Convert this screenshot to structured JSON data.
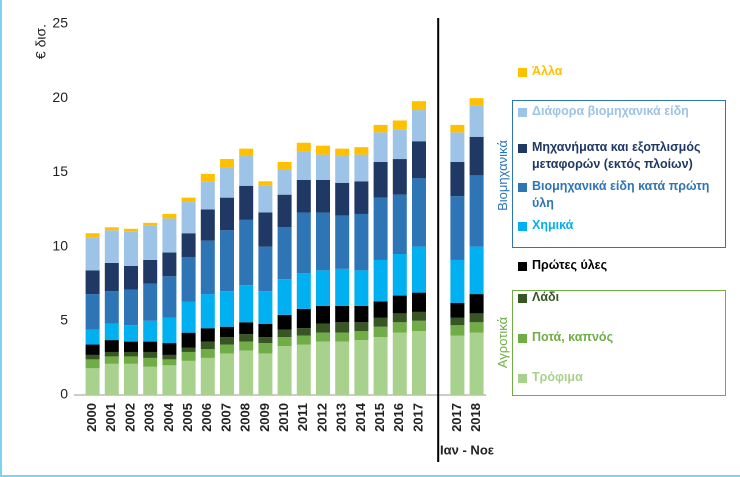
{
  "chart_data": {
    "type": "stacked_bar",
    "y_label": "€ δισ.",
    "period_label": "Ιαν - Νοε",
    "categories": [
      "2000",
      "2001",
      "2002",
      "2003",
      "2004",
      "2005",
      "2006",
      "2007",
      "2008",
      "2009",
      "2010",
      "2011",
      "2012",
      "2013",
      "2014",
      "2015",
      "2016",
      "2017",
      null,
      "2017",
      "2018"
    ],
    "ylim": [
      0,
      25
    ],
    "yticks": [
      0,
      5,
      10,
      15,
      20,
      25
    ],
    "grid": false,
    "groups": [
      {
        "label": "Βιομηχανικά",
        "color": "#2e75b6"
      },
      {
        "label": "Αγροτικά",
        "color": "#70ad47"
      }
    ],
    "series": [
      {
        "name": "Τρόφιμα",
        "color": "#a9d18e",
        "values": [
          1.8,
          2.1,
          2.1,
          1.9,
          2.0,
          2.3,
          2.5,
          2.8,
          3.0,
          2.8,
          3.3,
          3.4,
          3.6,
          3.6,
          3.7,
          3.9,
          4.2,
          4.3,
          null,
          4.0,
          4.2
        ]
      },
      {
        "name": "Ποτά, καπνός",
        "color": "#70ad47",
        "values": [
          0.6,
          0.5,
          0.5,
          0.6,
          0.4,
          0.6,
          0.6,
          0.6,
          0.6,
          0.7,
          0.6,
          0.6,
          0.6,
          0.6,
          0.6,
          0.7,
          0.7,
          0.7,
          null,
          0.7,
          0.7
        ]
      },
      {
        "name": "Λάδι",
        "color": "#375623",
        "values": [
          0.3,
          0.3,
          0.3,
          0.4,
          0.3,
          0.3,
          0.5,
          0.5,
          0.5,
          0.4,
          0.5,
          0.5,
          0.6,
          0.7,
          0.6,
          0.6,
          0.6,
          0.6,
          null,
          0.5,
          0.6
        ]
      },
      {
        "name": "Πρώτες ύλες",
        "color": "#000000",
        "values": [
          0.7,
          0.8,
          0.7,
          0.7,
          0.8,
          1.0,
          0.9,
          0.7,
          0.8,
          0.9,
          1.0,
          1.3,
          1.2,
          1.1,
          1.1,
          1.1,
          1.2,
          1.3,
          null,
          1.0,
          1.3
        ]
      },
      {
        "name": "Χημικά",
        "color": "#00b0f0",
        "values": [
          1.0,
          1.1,
          1.1,
          1.4,
          1.7,
          2.1,
          2.3,
          2.4,
          2.5,
          2.2,
          2.4,
          2.4,
          2.4,
          2.5,
          2.4,
          2.8,
          2.8,
          3.1,
          null,
          2.9,
          3.2
        ]
      },
      {
        "name": "Βιομηχανικά είδη κατά πρώτη ύλη",
        "color": "#2e75b6",
        "values": [
          2.4,
          2.2,
          2.4,
          2.5,
          2.8,
          3.0,
          3.6,
          4.1,
          4.4,
          3.0,
          3.5,
          4.1,
          3.9,
          3.6,
          3.8,
          4.2,
          4.0,
          4.6,
          null,
          4.3,
          4.8
        ]
      },
      {
        "name": "Μηχανήματα και εξοπλισμός μεταφορών (εκτός πλοίων)",
        "color": "#1f3864",
        "values": [
          1.6,
          1.9,
          1.6,
          1.6,
          1.6,
          1.6,
          2.1,
          2.2,
          2.3,
          2.3,
          2.2,
          2.2,
          2.2,
          2.2,
          2.2,
          2.4,
          2.4,
          2.5,
          null,
          2.3,
          2.6
        ]
      },
      {
        "name": "Διάφορα βιομηχανικά είδη",
        "color": "#9dc3e6",
        "values": [
          2.2,
          2.2,
          2.3,
          2.3,
          2.3,
          2.1,
          1.9,
          2.0,
          2.0,
          1.8,
          1.7,
          1.9,
          1.7,
          1.8,
          1.8,
          2.0,
          2.0,
          2.1,
          null,
          2.0,
          2.1
        ]
      },
      {
        "name": "Άλλα",
        "color": "#ffc000",
        "values": [
          0.3,
          0.2,
          0.2,
          0.2,
          0.3,
          0.3,
          0.5,
          0.6,
          0.5,
          0.3,
          0.5,
          0.6,
          0.6,
          0.5,
          0.5,
          0.5,
          0.6,
          0.6,
          null,
          0.5,
          0.5
        ]
      }
    ]
  }
}
